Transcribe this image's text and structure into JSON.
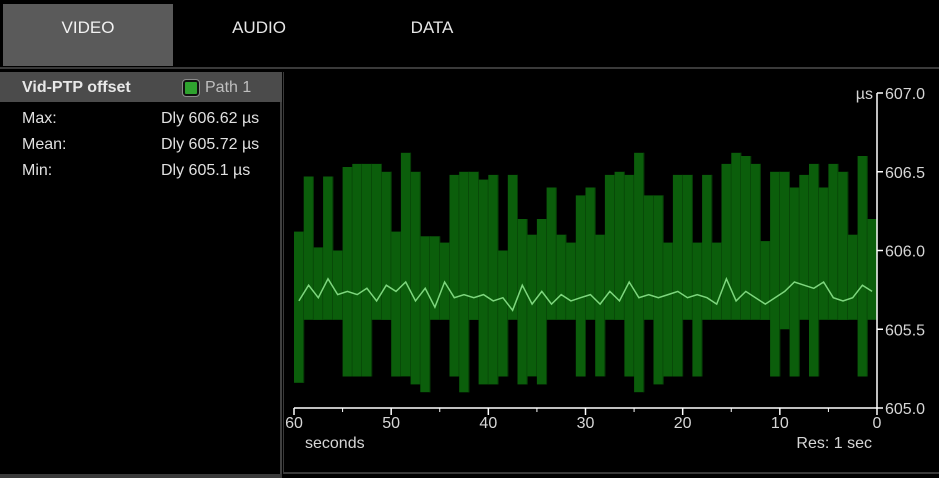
{
  "tabs": [
    {
      "label": "VIDEO",
      "active": true
    },
    {
      "label": "AUDIO",
      "active": false
    },
    {
      "label": "DATA",
      "active": false
    }
  ],
  "panel": {
    "title": "Vid-PTP offset",
    "legend_label": "Path 1",
    "legend_color": "#2fa32f",
    "stats": [
      {
        "label": "Max:",
        "value": "Dly 606.62 µs"
      },
      {
        "label": "Mean:",
        "value": "Dly 605.72 µs"
      },
      {
        "label": "Min:",
        "value": "Dly 605.1 µs"
      }
    ]
  },
  "graph": {
    "unit": "µs",
    "y_ticks": [
      "607.0",
      "606.5",
      "606.0",
      "605.5",
      "605.0"
    ],
    "x_ticks": [
      "60",
      "50",
      "40",
      "30",
      "20",
      "10",
      "0"
    ],
    "x_label": "seconds",
    "resolution": "Res: 1 sec",
    "colors": {
      "bar": "#0b5e0b",
      "mean_line": "#7ed67e",
      "axis": "#ffffff"
    }
  },
  "chart_data": {
    "type": "bar",
    "x": [
      60,
      59,
      58,
      57,
      56,
      55,
      54,
      53,
      52,
      51,
      50,
      49,
      48,
      47,
      46,
      45,
      44,
      43,
      42,
      41,
      40,
      39,
      38,
      37,
      36,
      35,
      34,
      33,
      32,
      31,
      30,
      29,
      28,
      27,
      26,
      25,
      24,
      23,
      22,
      21,
      20,
      19,
      18,
      17,
      16,
      15,
      14,
      13,
      12,
      11,
      10,
      9,
      8,
      7,
      6,
      5,
      4,
      3,
      2,
      1
    ],
    "series": [
      {
        "values_max": [
          606.12,
          606.47,
          606.02,
          606.47,
          606.0,
          606.53,
          606.55,
          606.55,
          606.55,
          606.5,
          606.12,
          606.62,
          606.5,
          606.09,
          606.09,
          606.05,
          606.48,
          606.5,
          606.5,
          606.45,
          606.48,
          606.0,
          606.48,
          606.2,
          606.1,
          606.2,
          606.4,
          606.1,
          606.05,
          606.35,
          606.4,
          606.1,
          606.48,
          606.5,
          606.48,
          606.62,
          606.35,
          606.35,
          606.05,
          606.48,
          606.48,
          606.05,
          606.48,
          606.05,
          606.55,
          606.62,
          606.6,
          606.55,
          606.06,
          606.5,
          606.5,
          606.4,
          606.48,
          606.55,
          606.4,
          606.55,
          606.5,
          606.1,
          606.6,
          606.2
        ],
        "values_min": [
          605.16,
          605.56,
          605.56,
          605.56,
          605.56,
          605.2,
          605.2,
          605.2,
          605.56,
          605.56,
          605.2,
          605.2,
          605.15,
          605.1,
          605.56,
          605.56,
          605.2,
          605.1,
          605.56,
          605.15,
          605.15,
          605.2,
          605.56,
          605.15,
          605.2,
          605.15,
          605.56,
          605.56,
          605.56,
          605.2,
          605.56,
          605.2,
          605.56,
          605.56,
          605.2,
          605.1,
          605.56,
          605.15,
          605.2,
          605.2,
          605.56,
          605.2,
          605.56,
          605.56,
          605.56,
          605.56,
          605.56,
          605.56,
          605.56,
          605.2,
          605.5,
          605.2,
          605.56,
          605.2,
          605.56,
          605.56,
          605.56,
          605.56,
          605.2,
          605.56
        ]
      },
      {
        "values_mean": [
          605.68,
          605.78,
          605.7,
          605.82,
          605.72,
          605.74,
          605.72,
          605.76,
          605.68,
          605.78,
          605.74,
          605.8,
          605.68,
          605.76,
          605.64,
          605.8,
          605.7,
          605.72,
          605.7,
          605.72,
          605.68,
          605.7,
          605.62,
          605.78,
          605.66,
          605.74,
          605.66,
          605.72,
          605.68,
          605.7,
          605.72,
          605.66,
          605.74,
          605.68,
          605.8,
          605.7,
          605.72,
          605.7,
          605.72,
          605.74,
          605.7,
          605.72,
          605.7,
          605.66,
          605.82,
          605.68,
          605.74,
          605.7,
          605.66,
          605.7,
          605.74,
          605.8,
          605.78,
          605.76,
          605.8,
          605.7,
          605.68,
          605.7,
          605.78,
          605.74
        ]
      }
    ],
    "ylim": [
      605.0,
      607.0
    ],
    "xlim": [
      60,
      0
    ],
    "grid": false
  }
}
